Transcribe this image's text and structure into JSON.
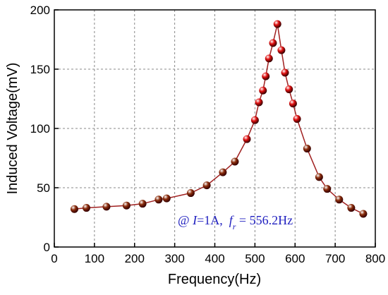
{
  "chart_data": {
    "type": "line",
    "xlabel": "Frequency(Hz)",
    "ylabel": "Induced Voltage(mV)",
    "annotation_parts": [
      "@ ",
      "I",
      "=1A,  ",
      "f",
      "r",
      " = 556.2Hz"
    ],
    "annotation_color": "#1f1fbf",
    "grid": true,
    "xlim": [
      0,
      800
    ],
    "xticks": [
      0,
      100,
      200,
      300,
      400,
      500,
      600,
      700,
      800
    ],
    "ylim": [
      0,
      200
    ],
    "yticks": [
      0,
      50,
      100,
      150,
      200
    ],
    "series": [
      {
        "line_color": "#a02020",
        "x": [
          50,
          80,
          130,
          180,
          220,
          260,
          280,
          340,
          380,
          420,
          450,
          480,
          500,
          510,
          520,
          527,
          535,
          545,
          556,
          566,
          575,
          585,
          595,
          605,
          630,
          660,
          680,
          710,
          740,
          770
        ],
        "values": [
          32,
          33,
          34,
          35,
          36.5,
          40,
          41,
          45.5,
          52,
          63,
          72,
          91,
          107,
          122,
          132,
          144,
          159,
          172,
          188,
          166,
          147,
          133,
          121,
          108,
          83,
          59,
          49,
          40,
          33,
          28
        ],
        "point_colors": [
          "#8b2d0c",
          "#8b2d0c",
          "#8b2d0c",
          "#8b2d0c",
          "#8b2d0c",
          "#8b2d0c",
          "#8b2d0c",
          "#8b2d0c",
          "#8b2d0c",
          "#8b2d0c",
          "#8b2d0c",
          "#e01010",
          "#e01010",
          "#e01010",
          "#e01010",
          "#e01010",
          "#e01010",
          "#e01010",
          "#e01010",
          "#e01010",
          "#e01010",
          "#e01010",
          "#e01010",
          "#e01010",
          "#8b2d0c",
          "#8b2d0c",
          "#8b2d0c",
          "#8b2d0c",
          "#8b2d0c",
          "#8b2d0c"
        ]
      }
    ]
  }
}
